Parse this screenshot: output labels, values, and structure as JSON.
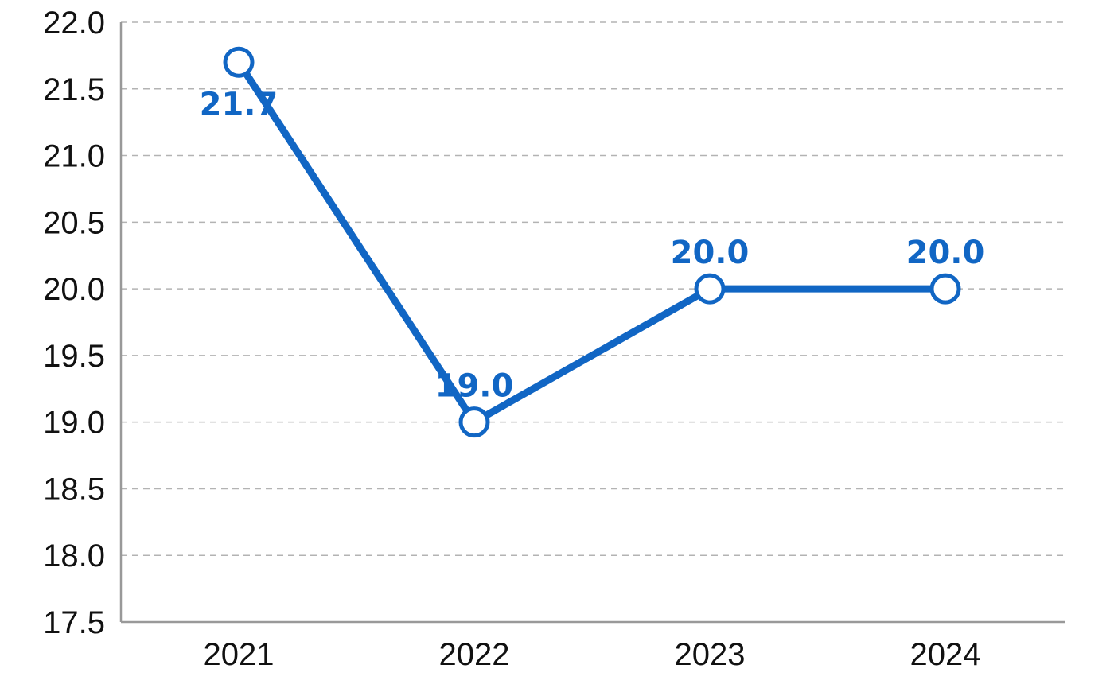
{
  "chart_data": {
    "type": "line",
    "title": "",
    "xlabel": "",
    "ylabel": "",
    "categories": [
      "2021",
      "2022",
      "2023",
      "2024"
    ],
    "series": [
      {
        "values": [
          21.7,
          19.0,
          20.0,
          20.0
        ],
        "labels": [
          "21.7",
          "19.0",
          "20.0",
          "20.0"
        ],
        "color": "#1166c4"
      }
    ],
    "ylim": [
      17.5,
      22.0
    ],
    "yticks": [
      "17.5",
      "18.0",
      "18.5",
      "19.0",
      "19.5",
      "20.0",
      "20.5",
      "21.0",
      "21.5",
      "22.0"
    ],
    "grid": true,
    "legend": "none"
  }
}
